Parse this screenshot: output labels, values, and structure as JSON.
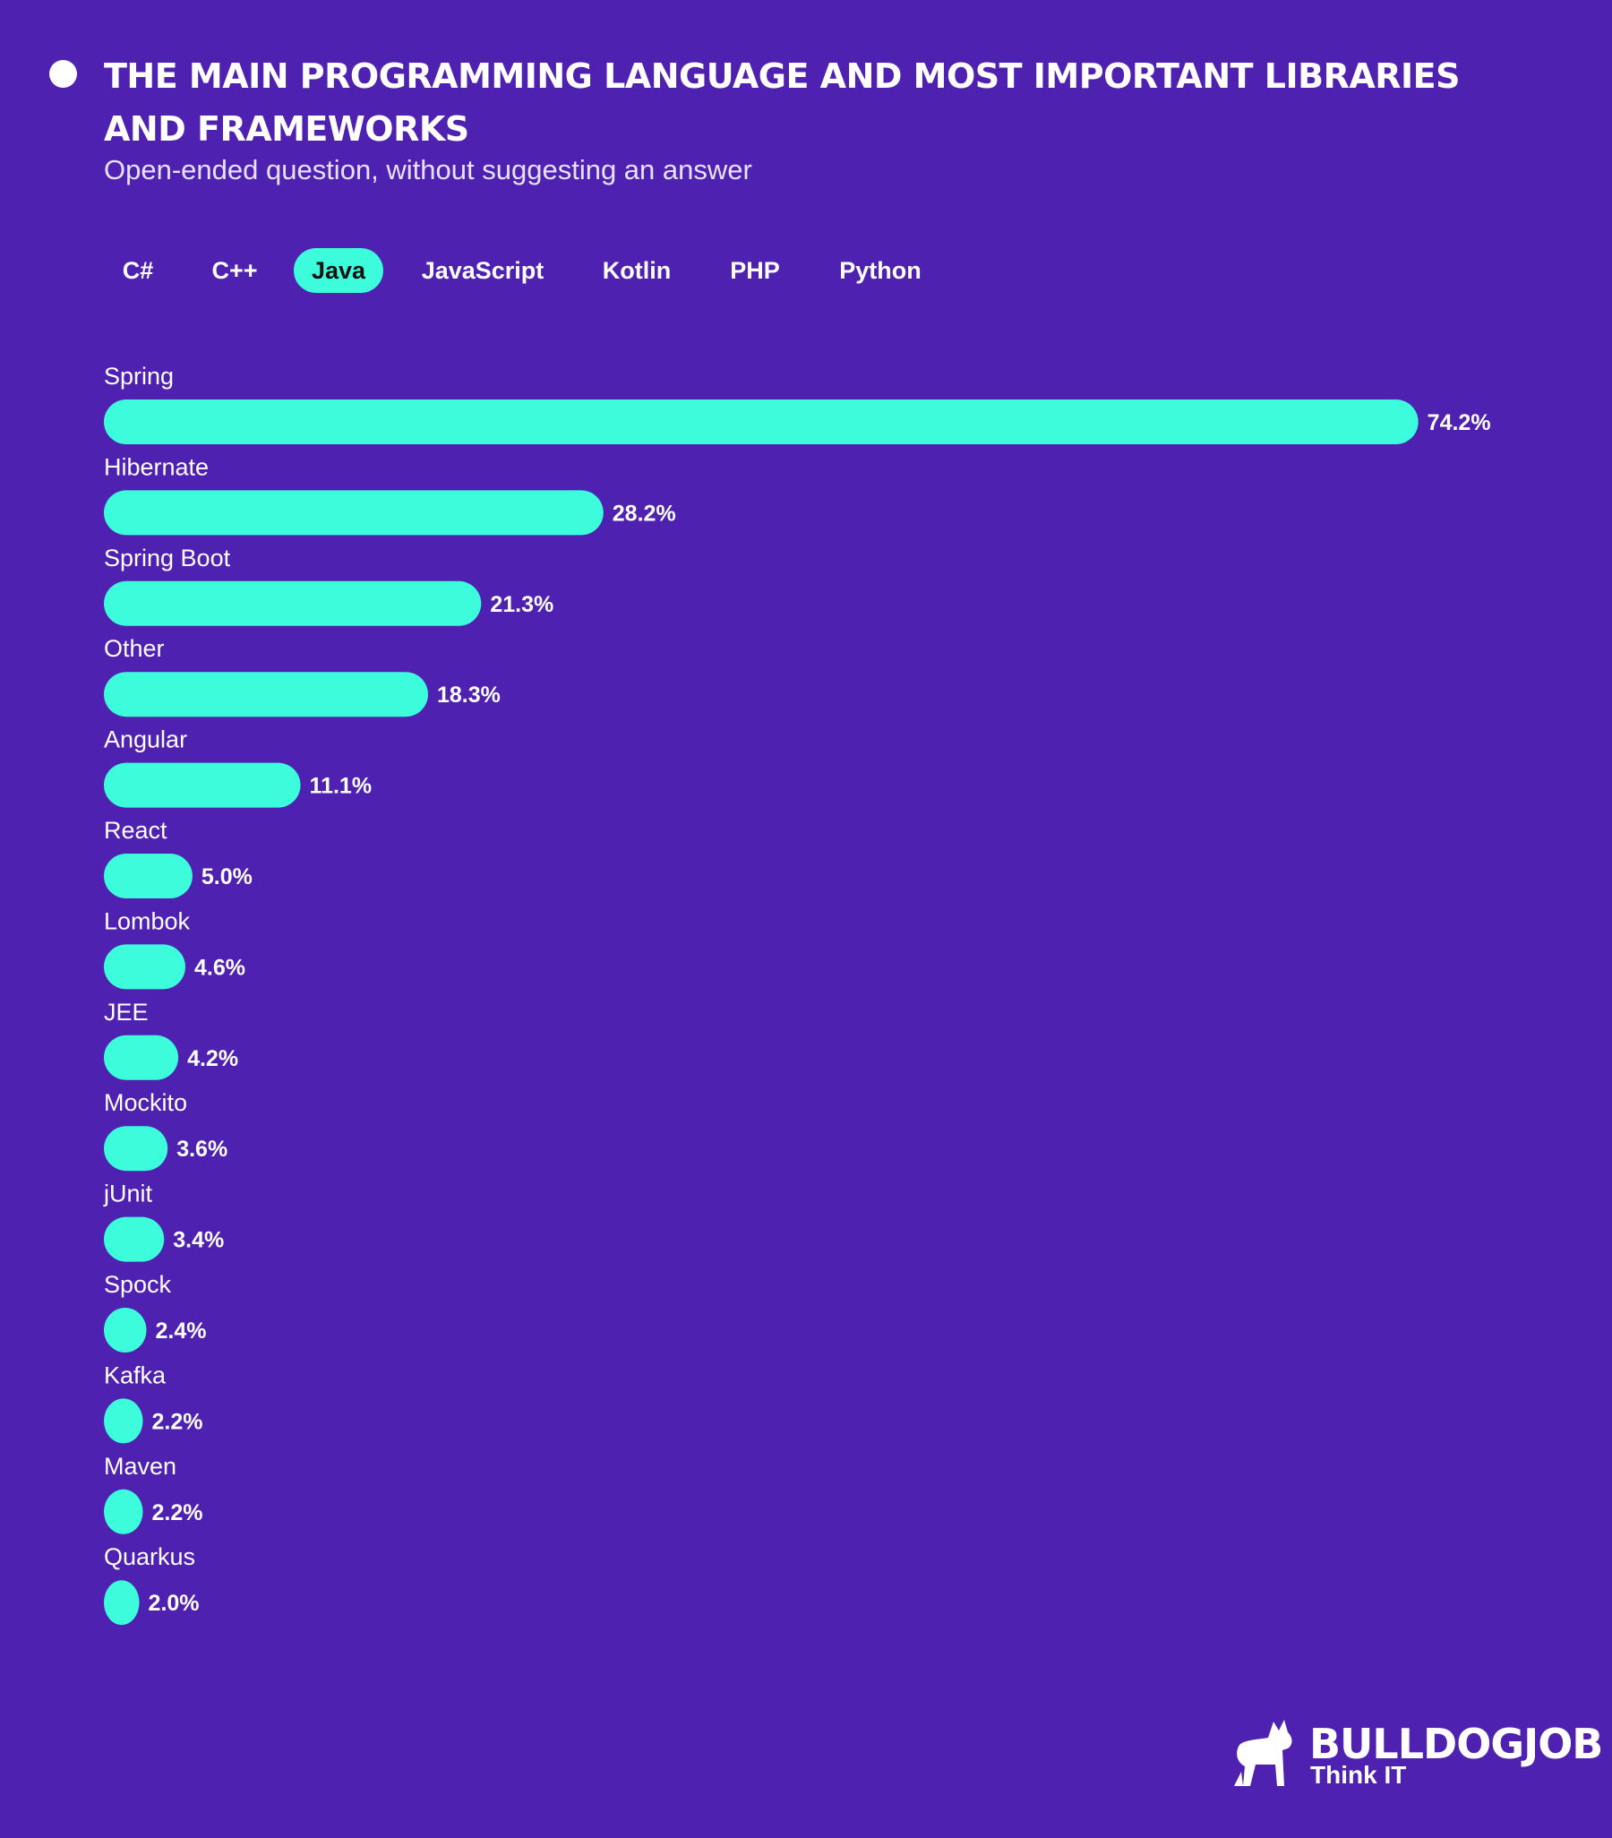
{
  "header": {
    "title": "THE MAIN PROGRAMMING LANGUAGE AND MOST IMPORTANT LIBRARIES AND FRAMEWORKS",
    "subtitle": "Open-ended question, without suggesting an answer"
  },
  "tabs": [
    "C#",
    "C++",
    "Java",
    "JavaScript",
    "Kotlin",
    "PHP",
    "Python"
  ],
  "chart_data": {
    "type": "bar",
    "orientation": "horizontal",
    "color": "#3cfcdc",
    "categories": [
      "Spring",
      "Hibernate",
      "Spring Boot",
      "Other",
      "Angular",
      "React",
      "Lombok",
      "JEE",
      "Mockito",
      "jUnit",
      "Spock",
      "Kafka",
      "Maven",
      "Quarkus"
    ],
    "values": [
      74.2,
      28.2,
      21.3,
      18.3,
      11.1,
      5.0,
      4.6,
      4.2,
      3.6,
      3.4,
      2.4,
      2.2,
      2.2,
      2.0
    ],
    "value_labels": [
      "74.2%",
      "28.2%",
      "21.3%",
      "18.3%",
      "11.1%",
      "5.0%",
      "4.6%",
      "4.2%",
      "3.6%",
      "3.4%",
      "2.4%",
      "2.2%",
      "2.2%",
      "2.0%"
    ]
  },
  "logo": {
    "name": "BULLDOGJOB",
    "tagline": "Think IT"
  }
}
